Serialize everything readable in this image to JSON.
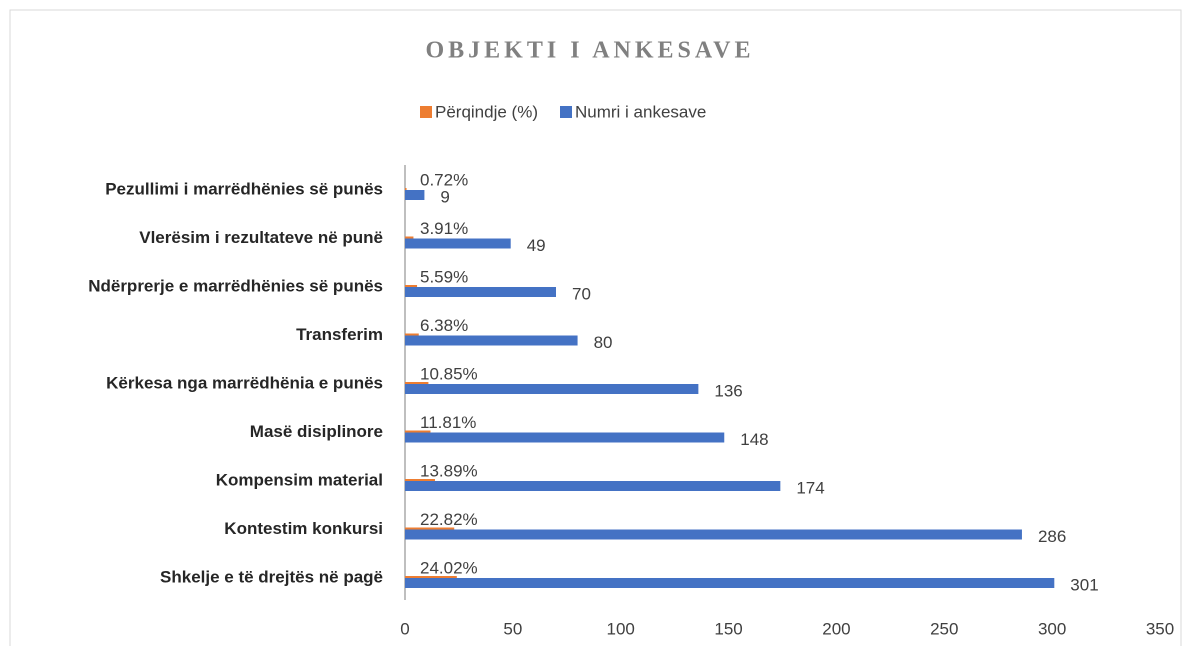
{
  "chart_data": {
    "type": "barh",
    "title": "OBJEKTI I ANKESAVE",
    "categories": [
      "Pezullimi i marrëdhënies së punës",
      "Vlerësim i rezultateve në punë",
      "Ndërprerje e marrëdhënies së punës",
      "Transferim",
      "Kërkesa nga marrëdhënia e punës",
      "Masë disiplinore",
      "Kompensim material",
      "Kontestim konkursi",
      "Shkelje e të drejtës në pagë"
    ],
    "series": [
      {
        "name": "Përqindje (%)",
        "color": "#ed7d31",
        "values": [
          0.72,
          3.91,
          5.59,
          6.38,
          10.85,
          11.81,
          13.89,
          22.82,
          24.02
        ],
        "value_labels": [
          "0.72%",
          "3.91%",
          "5.59%",
          "6.38%",
          "10.85%",
          "11.81%",
          "13.89%",
          "22.82%",
          "24.02%"
        ]
      },
      {
        "name": "Numri i ankesave",
        "color": "#4472c4",
        "values": [
          9,
          49,
          70,
          80,
          136,
          148,
          174,
          286,
          301
        ]
      }
    ],
    "xlim": [
      0,
      350
    ],
    "xticks": [
      0,
      50,
      100,
      150,
      200,
      250,
      300,
      350
    ],
    "legend": "top"
  }
}
